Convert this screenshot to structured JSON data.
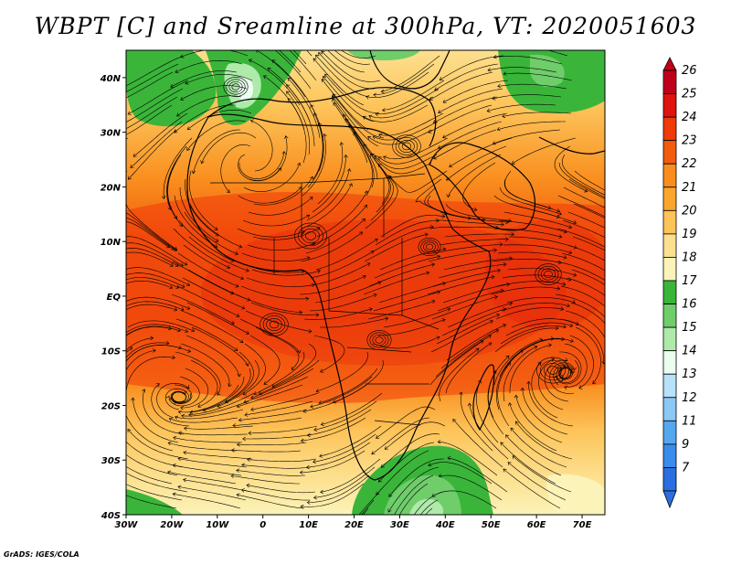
{
  "title": "WBPT [C] and Sreamline at 300hPa, VT: 2020051603",
  "credit": "GrADS: IGES/COLA",
  "map": {
    "lon_range": [
      -30,
      75
    ],
    "lat_range": [
      -40,
      45
    ],
    "lon_ticks": [
      "30W",
      "20W",
      "10W",
      "0",
      "10E",
      "20E",
      "30E",
      "40E",
      "50E",
      "60E",
      "70E"
    ],
    "lat_ticks": [
      "40N",
      "30N",
      "20N",
      "10N",
      "EQ",
      "10S",
      "20S",
      "30S",
      "40S"
    ]
  },
  "colorbar": {
    "levels": [
      "26",
      "25",
      "24",
      "23",
      "22",
      "21",
      "20",
      "19",
      "18",
      "17",
      "16",
      "15",
      "14",
      "13",
      "12",
      "11",
      "9",
      "7"
    ],
    "colors": [
      "#c0001b",
      "#e0140c",
      "#f03a0a",
      "#f25c0f",
      "#f98e1e",
      "#fba52b",
      "#fdc45a",
      "#fde08f",
      "#fbf3b8",
      "#3ab53a",
      "#6fcd6a",
      "#aeeaaa",
      "#eafff0",
      "#b8e1fb",
      "#8ac8f6",
      "#55a8ee",
      "#3a8cec",
      "#2a6fe0"
    ]
  }
}
